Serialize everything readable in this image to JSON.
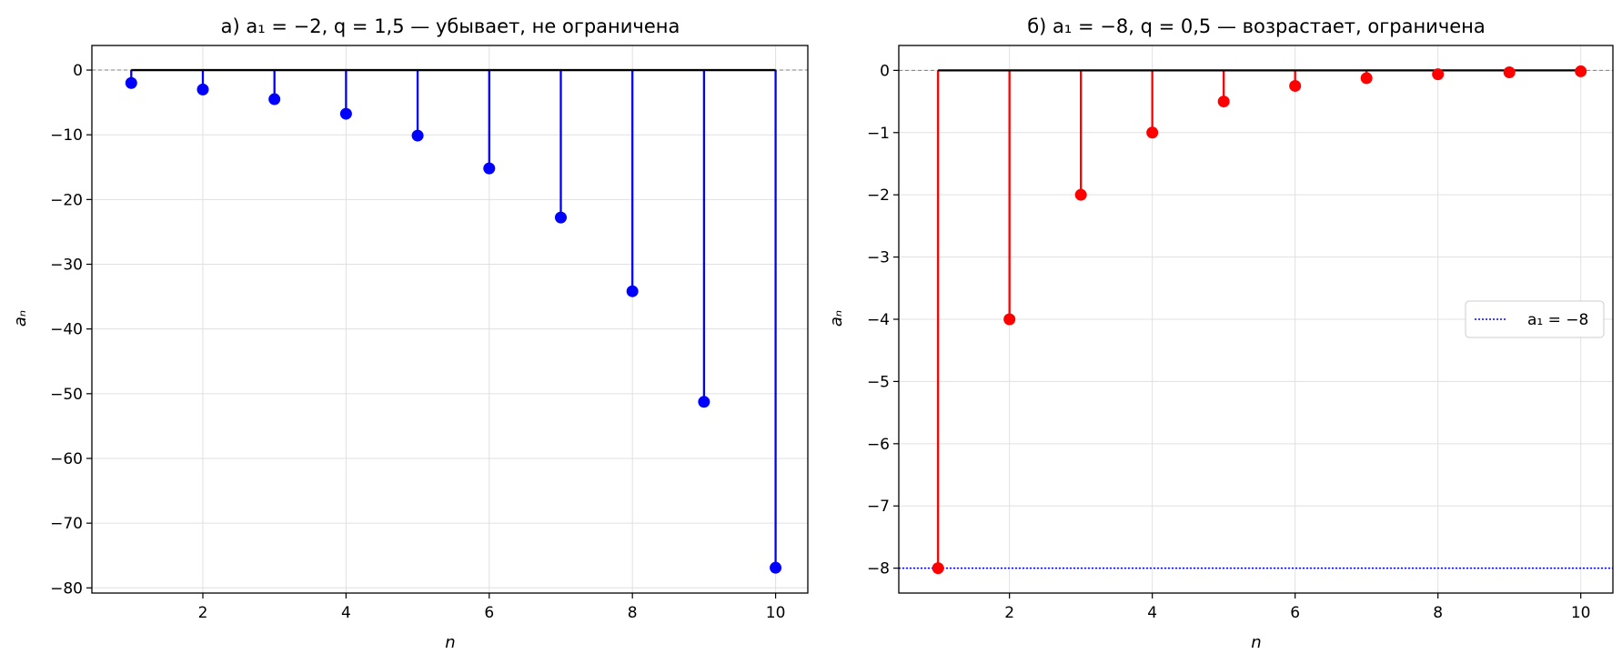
{
  "chart_data": [
    {
      "type": "stem",
      "title": "а) a₁ = −2,  q = 1,5 — убывает, не ограничена",
      "xlabel": "n",
      "ylabel": "aₙ",
      "xlim": [
        0.45,
        10.45
      ],
      "ylim": [
        -80.8,
        3.8
      ],
      "xticks": [
        2,
        4,
        6,
        8,
        10
      ],
      "yticks": [
        0,
        -10,
        -20,
        -30,
        -40,
        -50,
        -60,
        -70,
        -80
      ],
      "grid": true,
      "color": "#0000ff",
      "series": [
        {
          "x": [
            1,
            2,
            3,
            4,
            5,
            6,
            7,
            8,
            9,
            10
          ],
          "values": [
            -2,
            -3,
            -4.5,
            -6.75,
            -10.125,
            -15.19,
            -22.78,
            -34.17,
            -51.26,
            -76.89
          ]
        }
      ]
    },
    {
      "type": "stem",
      "title": "б) a₁ = −8,  q = 0,5 — возрастает, ограничена",
      "xlabel": "n",
      "ylabel": "aₙ",
      "xlim": [
        0.45,
        10.45
      ],
      "ylim": [
        -8.4,
        0.4
      ],
      "xticks": [
        2,
        4,
        6,
        8,
        10
      ],
      "yticks": [
        0,
        -1,
        -2,
        -3,
        -4,
        -5,
        -6,
        -7,
        -8
      ],
      "grid": true,
      "color": "#ff0000",
      "series": [
        {
          "x": [
            1,
            2,
            3,
            4,
            5,
            6,
            7,
            8,
            9,
            10
          ],
          "values": [
            -8,
            -4,
            -2,
            -1,
            -0.5,
            -0.25,
            -0.125,
            -0.0625,
            -0.03125,
            -0.015625
          ]
        }
      ],
      "hline": {
        "value": -8,
        "color": "#0000ff",
        "label": "a₁ = −8"
      },
      "legend_position": "center-right"
    }
  ]
}
